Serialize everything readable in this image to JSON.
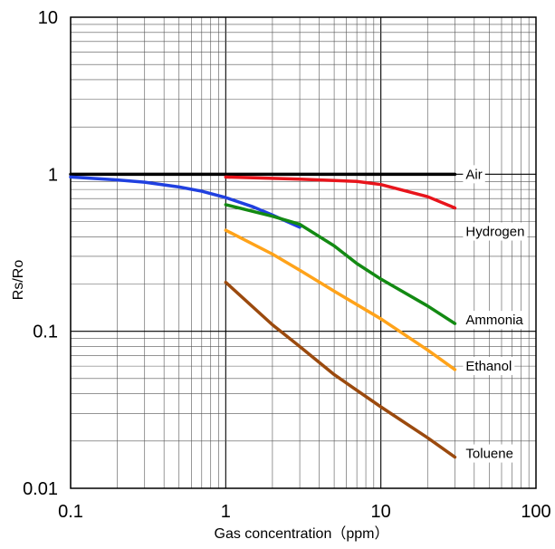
{
  "chart_data": {
    "type": "line",
    "xlabel": "Gas concentration（ppm）",
    "ylabel": "Rs/Ro",
    "x_scale": "log",
    "y_scale": "log",
    "xlim": [
      0.1,
      100
    ],
    "ylim": [
      0.01,
      10
    ],
    "grid": true,
    "x_ticks": [
      "0.1",
      "1",
      "10",
      "100"
    ],
    "y_ticks": [
      "10",
      "1",
      "0.1",
      "0.01"
    ],
    "series": [
      {
        "name": "Air",
        "color": "#000000",
        "x": [
          0.1,
          30
        ],
        "y": [
          1.0,
          1.0
        ]
      },
      {
        "name": "Hydrogen",
        "color": "#e8141b",
        "x": [
          1,
          3,
          7,
          10,
          20,
          30
        ],
        "y": [
          0.96,
          0.93,
          0.9,
          0.86,
          0.72,
          0.61
        ]
      },
      {
        "name": "",
        "color": "#2040e0",
        "x": [
          0.1,
          0.2,
          0.3,
          0.5,
          0.7,
          1,
          1.5,
          2,
          3
        ],
        "y": [
          0.96,
          0.92,
          0.89,
          0.83,
          0.78,
          0.71,
          0.62,
          0.55,
          0.46
        ]
      },
      {
        "name": "Ammonia",
        "color": "#138a13",
        "x": [
          1,
          2,
          3,
          5,
          7,
          10,
          20,
          30
        ],
        "y": [
          0.64,
          0.54,
          0.48,
          0.35,
          0.27,
          0.215,
          0.145,
          0.112
        ]
      },
      {
        "name": "Ethanol",
        "color": "#ffa31a",
        "x": [
          1,
          2,
          3,
          5,
          10,
          20,
          30
        ],
        "y": [
          0.44,
          0.31,
          0.245,
          0.18,
          0.12,
          0.076,
          0.057
        ]
      },
      {
        "name": "Toluene",
        "color": "#9b4a0e",
        "x": [
          1,
          2,
          3,
          5,
          10,
          20,
          30
        ],
        "y": [
          0.205,
          0.11,
          0.08,
          0.053,
          0.033,
          0.021,
          0.0158
        ]
      }
    ]
  }
}
